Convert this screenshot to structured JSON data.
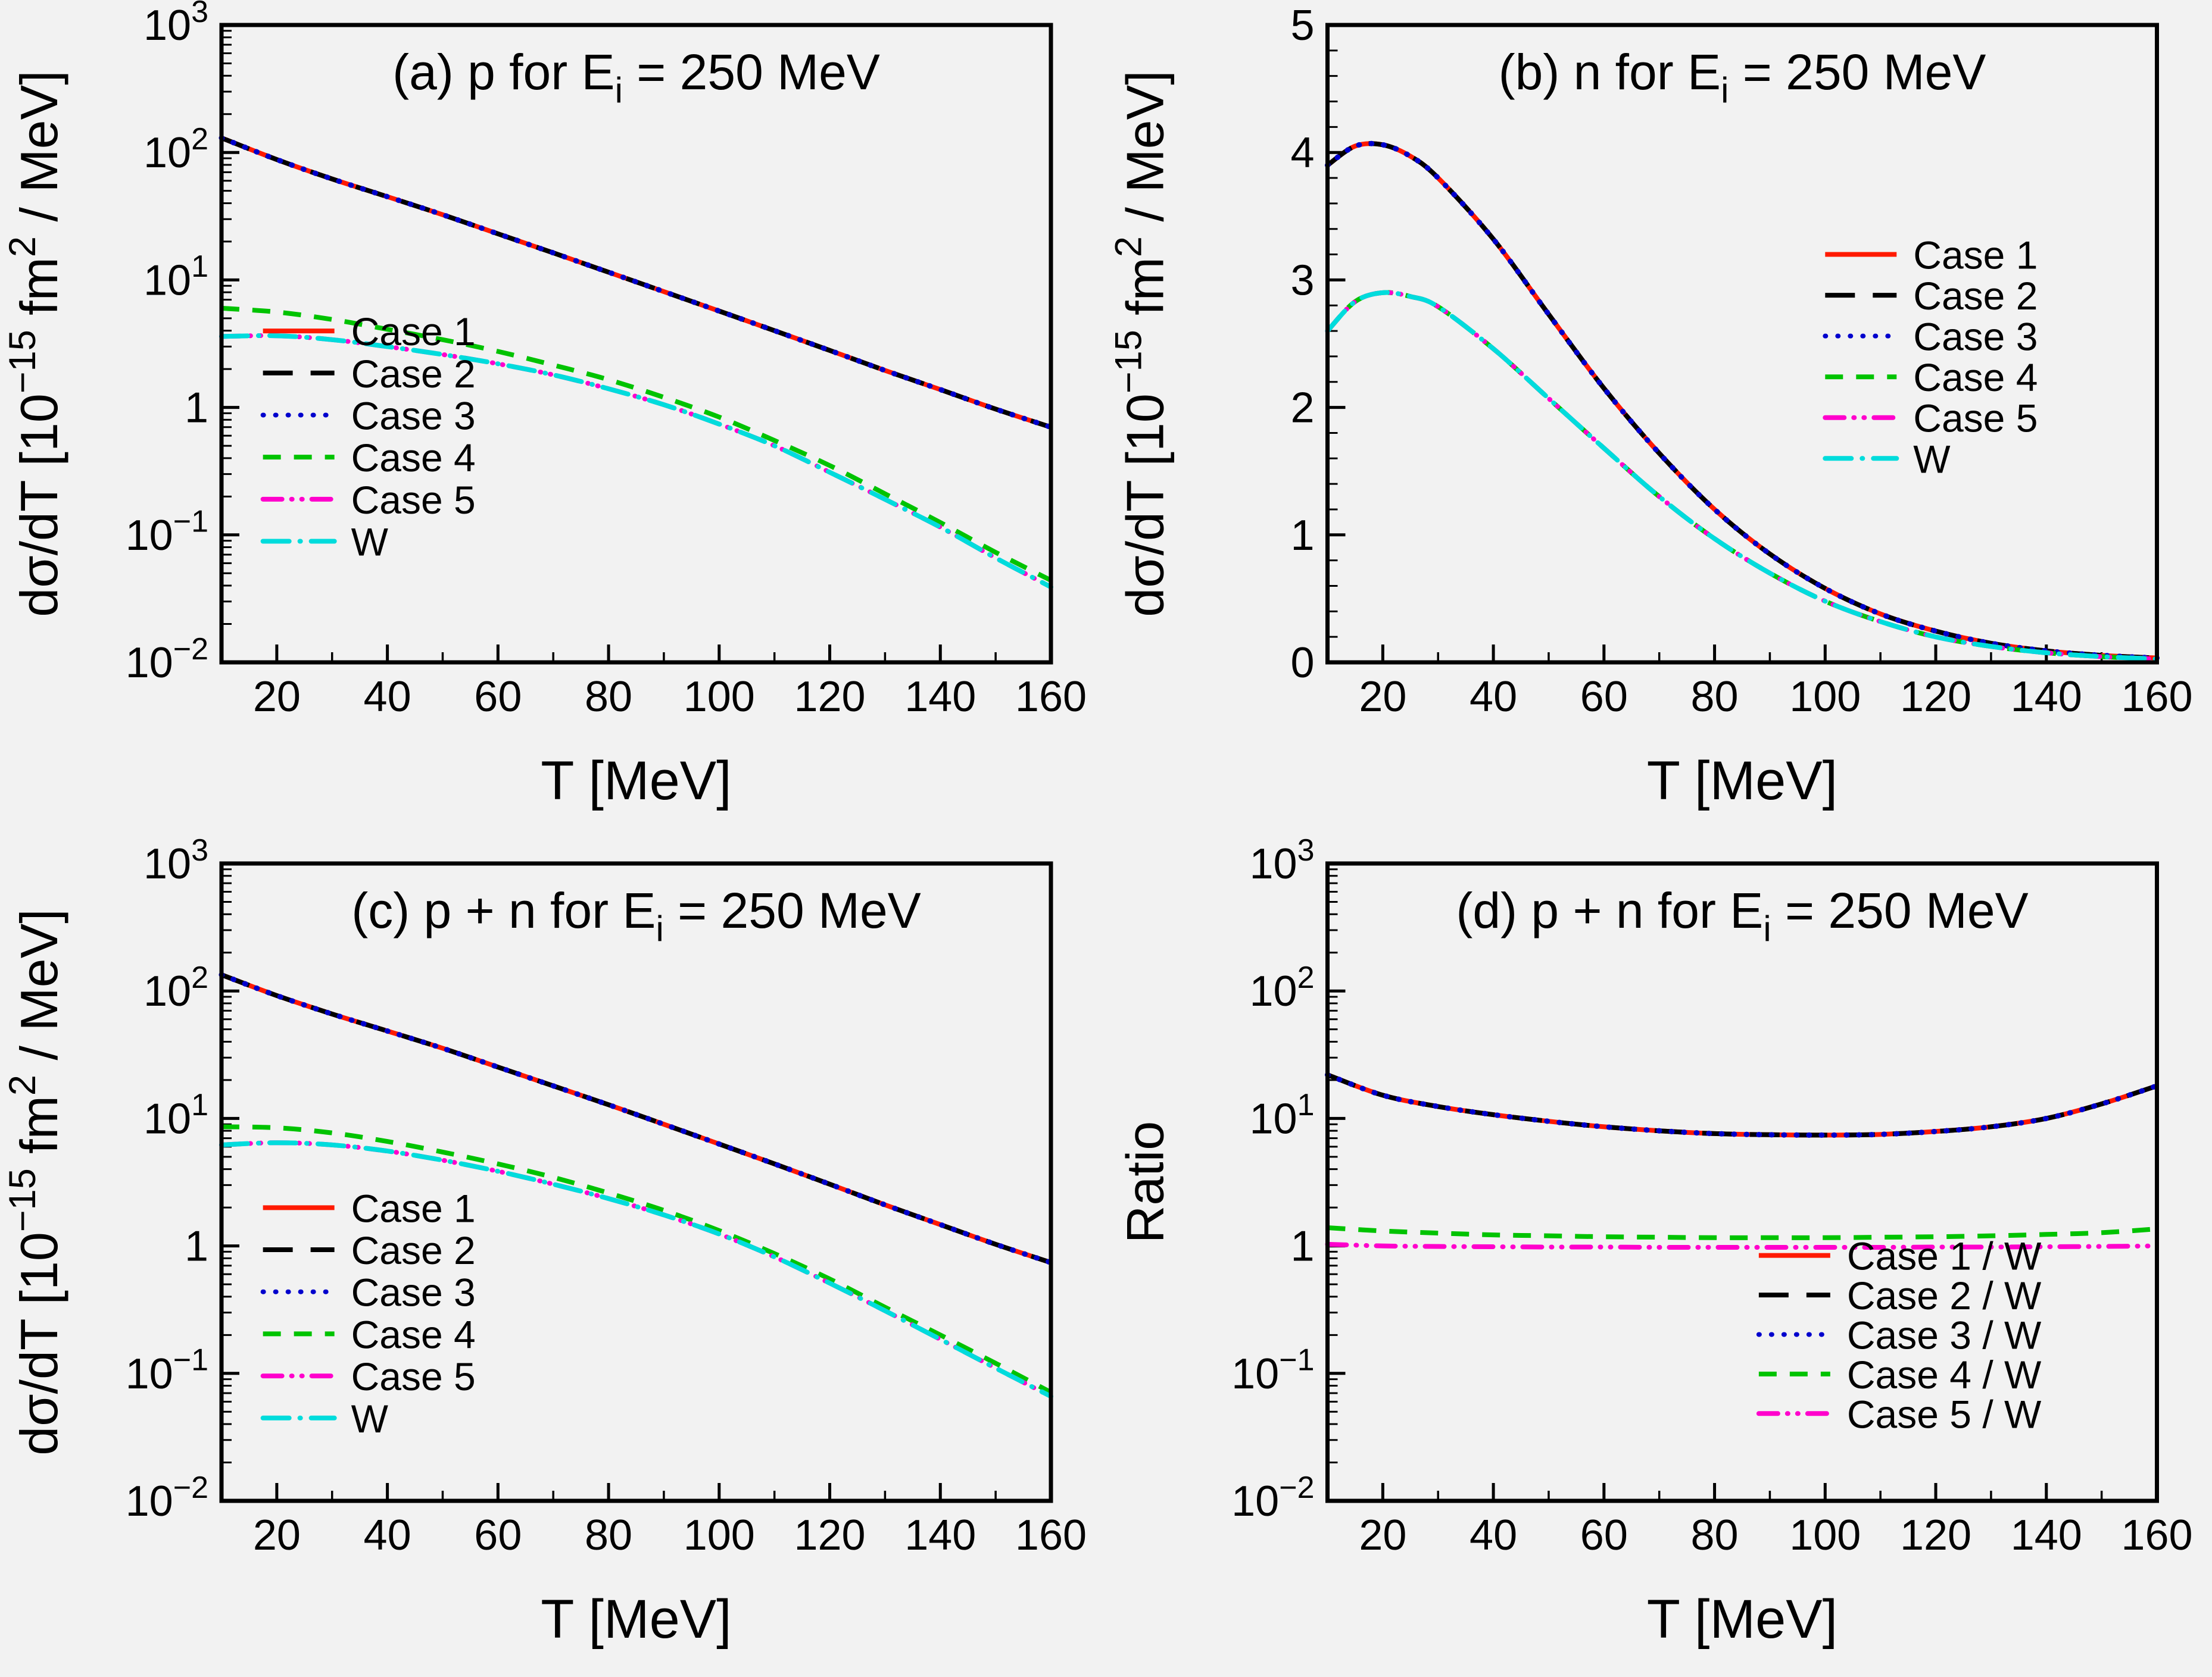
{
  "figure": {
    "background": "#f2f2f2",
    "frame_color": "#000000",
    "text_color": "#000000"
  },
  "chart_data": [
    {
      "id": "a",
      "type": "line",
      "title_text": "(a) p for Ei = 250 MeV",
      "title_parts": [
        {
          "t": "(a) p for E"
        },
        {
          "t": "i",
          "sub": true
        },
        {
          "t": " = 250 MeV"
        }
      ],
      "xlabel": "T [MeV]",
      "ylabel_text": "dσ/dT [10−15 fm2 / MeV]",
      "ylabel_parts": [
        {
          "t": "dσ/dT [10"
        },
        {
          "t": "−15",
          "sup": true
        },
        {
          "t": " fm"
        },
        {
          "t": "2",
          "sup": true
        },
        {
          "t": " / MeV]"
        }
      ],
      "xscale": "linear",
      "yscale": "log",
      "xlim": [
        10,
        160
      ],
      "ylim": [
        0.01,
        1000
      ],
      "xticks": [
        20,
        40,
        60,
        80,
        100,
        120,
        140,
        160
      ],
      "yticks": [
        {
          "v": 0.01,
          "parts": [
            {
              "t": "10"
            },
            {
              "t": "−2",
              "sup": true
            }
          ]
        },
        {
          "v": 0.1,
          "parts": [
            {
              "t": "10"
            },
            {
              "t": "−1",
              "sup": true
            }
          ]
        },
        {
          "v": 1,
          "parts": [
            {
              "t": "1"
            }
          ]
        },
        {
          "v": 10,
          "parts": [
            {
              "t": "10"
            },
            {
              "t": "1",
              "sup": true
            }
          ]
        },
        {
          "v": 100,
          "parts": [
            {
              "t": "10"
            },
            {
              "t": "2",
              "sup": true
            }
          ]
        },
        {
          "v": 1000,
          "parts": [
            {
              "t": "10"
            },
            {
              "t": "3",
              "sup": true
            }
          ]
        }
      ],
      "x": [
        10,
        20,
        30,
        40,
        50,
        60,
        70,
        80,
        90,
        100,
        110,
        120,
        130,
        140,
        150,
        160
      ],
      "series": [
        {
          "name": "Case 1",
          "color": "#ff1a00",
          "dash": "solid",
          "width": 8,
          "values": [
            130,
            88,
            62,
            45,
            32.5,
            23,
            16.3,
            11.5,
            8.1,
            5.7,
            4.0,
            2.8,
            1.95,
            1.38,
            0.97,
            0.7
          ]
        },
        {
          "name": "Case 2",
          "color": "#000000",
          "dash": "longdash",
          "width": 8,
          "values": [
            130,
            88,
            62,
            45,
            32.5,
            23,
            16.3,
            11.5,
            8.1,
            5.7,
            4.0,
            2.8,
            1.95,
            1.38,
            0.97,
            0.7
          ]
        },
        {
          "name": "Case 3",
          "color": "#0000cd",
          "dash": "dot",
          "width": 9,
          "values": [
            130,
            88,
            62,
            45,
            32.5,
            23,
            16.3,
            11.5,
            8.1,
            5.7,
            4.0,
            2.8,
            1.95,
            1.38,
            0.97,
            0.7
          ]
        },
        {
          "name": "Case 4",
          "color": "#00c300",
          "dash": "dash",
          "width": 8,
          "values": [
            6.0,
            5.6,
            4.9,
            4.1,
            3.4,
            2.75,
            2.15,
            1.65,
            1.2,
            0.84,
            0.55,
            0.35,
            0.21,
            0.125,
            0.073,
            0.044
          ]
        },
        {
          "name": "Case 5",
          "color": "#ff00cc",
          "dash": "dashdotdot",
          "width": 8,
          "values": [
            3.6,
            3.65,
            3.4,
            3.0,
            2.6,
            2.2,
            1.8,
            1.4,
            1.05,
            0.74,
            0.5,
            0.31,
            0.19,
            0.115,
            0.066,
            0.039
          ]
        },
        {
          "name": "W",
          "color": "#00dcdc",
          "dash": "dashdot",
          "width": 8,
          "values": [
            3.6,
            3.65,
            3.4,
            3.0,
            2.6,
            2.2,
            1.8,
            1.4,
            1.05,
            0.74,
            0.5,
            0.31,
            0.19,
            0.115,
            0.066,
            0.039
          ]
        }
      ],
      "legend": {
        "x": 0.05,
        "y": 0.48,
        "dy": 0.066
      }
    },
    {
      "id": "b",
      "type": "line",
      "title_text": "(b) n for Ei = 250 MeV",
      "title_parts": [
        {
          "t": "(b) n for E"
        },
        {
          "t": "i",
          "sub": true
        },
        {
          "t": " = 250 MeV"
        }
      ],
      "xlabel": "T [MeV]",
      "ylabel_text": "dσ/dT [10−15 fm2 / MeV]",
      "ylabel_parts": [
        {
          "t": "dσ/dT [10"
        },
        {
          "t": "−15",
          "sup": true
        },
        {
          "t": " fm"
        },
        {
          "t": "2",
          "sup": true
        },
        {
          "t": " / MeV]"
        }
      ],
      "xscale": "linear",
      "yscale": "linear",
      "xlim": [
        10,
        160
      ],
      "ylim": [
        0,
        5
      ],
      "xticks": [
        20,
        40,
        60,
        80,
        100,
        120,
        140,
        160
      ],
      "yticks": [
        {
          "v": 0,
          "parts": [
            {
              "t": "0"
            }
          ]
        },
        {
          "v": 1,
          "parts": [
            {
              "t": "1"
            }
          ]
        },
        {
          "v": 2,
          "parts": [
            {
              "t": "2"
            }
          ]
        },
        {
          "v": 3,
          "parts": [
            {
              "t": "3"
            }
          ]
        },
        {
          "v": 4,
          "parts": [
            {
              "t": "4"
            }
          ]
        },
        {
          "v": 5,
          "parts": [
            {
              "t": "5"
            }
          ]
        }
      ],
      "x": [
        10,
        15,
        20,
        25,
        30,
        40,
        50,
        60,
        70,
        80,
        90,
        100,
        110,
        120,
        130,
        140,
        150,
        160
      ],
      "series": [
        {
          "name": "Case 1",
          "color": "#ff1a00",
          "dash": "solid",
          "width": 8,
          "values": [
            3.9,
            4.05,
            4.06,
            3.97,
            3.8,
            3.32,
            2.73,
            2.15,
            1.64,
            1.2,
            0.85,
            0.58,
            0.38,
            0.245,
            0.15,
            0.09,
            0.055,
            0.034
          ]
        },
        {
          "name": "Case 2",
          "color": "#000000",
          "dash": "longdash",
          "width": 8,
          "values": [
            3.9,
            4.05,
            4.06,
            3.97,
            3.8,
            3.32,
            2.73,
            2.15,
            1.64,
            1.2,
            0.85,
            0.58,
            0.38,
            0.245,
            0.15,
            0.09,
            0.055,
            0.034
          ]
        },
        {
          "name": "Case 3",
          "color": "#0000cd",
          "dash": "dot",
          "width": 9,
          "values": [
            3.9,
            4.05,
            4.06,
            3.97,
            3.8,
            3.32,
            2.73,
            2.15,
            1.64,
            1.2,
            0.85,
            0.58,
            0.38,
            0.245,
            0.15,
            0.09,
            0.055,
            0.034
          ]
        },
        {
          "name": "Case 4",
          "color": "#00c300",
          "dash": "dash",
          "width": 8,
          "values": [
            2.6,
            2.83,
            2.9,
            2.87,
            2.79,
            2.46,
            2.07,
            1.68,
            1.3,
            0.97,
            0.7,
            0.48,
            0.32,
            0.2,
            0.125,
            0.075,
            0.045,
            0.027
          ]
        },
        {
          "name": "Case 5",
          "color": "#ff00cc",
          "dash": "dashdotdot",
          "width": 8,
          "values": [
            2.6,
            2.83,
            2.9,
            2.87,
            2.79,
            2.46,
            2.07,
            1.68,
            1.3,
            0.97,
            0.7,
            0.48,
            0.32,
            0.2,
            0.125,
            0.075,
            0.045,
            0.027
          ]
        },
        {
          "name": "W",
          "color": "#00dcdc",
          "dash": "dashdot",
          "width": 8,
          "values": [
            2.6,
            2.83,
            2.9,
            2.87,
            2.79,
            2.46,
            2.07,
            1.68,
            1.3,
            0.97,
            0.7,
            0.48,
            0.32,
            0.2,
            0.125,
            0.075,
            0.045,
            0.027
          ]
        }
      ],
      "legend": {
        "x": 0.6,
        "y": 0.36,
        "dy": 0.064
      }
    },
    {
      "id": "c",
      "type": "line",
      "title_text": "(c) p + n for Ei = 250 MeV",
      "title_parts": [
        {
          "t": "(c) p + n for E"
        },
        {
          "t": "i",
          "sub": true
        },
        {
          "t": " = 250 MeV"
        }
      ],
      "xlabel": "T [MeV]",
      "ylabel_text": "dσ/dT [10−15 fm2 / MeV]",
      "ylabel_parts": [
        {
          "t": "dσ/dT [10"
        },
        {
          "t": "−15",
          "sup": true
        },
        {
          "t": " fm"
        },
        {
          "t": "2",
          "sup": true
        },
        {
          "t": " / MeV]"
        }
      ],
      "xscale": "linear",
      "yscale": "log",
      "xlim": [
        10,
        160
      ],
      "ylim": [
        0.01,
        1000
      ],
      "xticks": [
        20,
        40,
        60,
        80,
        100,
        120,
        140,
        160
      ],
      "yticks": [
        {
          "v": 0.01,
          "parts": [
            {
              "t": "10"
            },
            {
              "t": "−2",
              "sup": true
            }
          ]
        },
        {
          "v": 0.1,
          "parts": [
            {
              "t": "10"
            },
            {
              "t": "−1",
              "sup": true
            }
          ]
        },
        {
          "v": 1,
          "parts": [
            {
              "t": "1"
            }
          ]
        },
        {
          "v": 10,
          "parts": [
            {
              "t": "10"
            },
            {
              "t": "1",
              "sup": true
            }
          ]
        },
        {
          "v": 100,
          "parts": [
            {
              "t": "10"
            },
            {
              "t": "2",
              "sup": true
            }
          ]
        },
        {
          "v": 1000,
          "parts": [
            {
              "t": "10"
            },
            {
              "t": "3",
              "sup": true
            }
          ]
        }
      ],
      "x": [
        10,
        20,
        30,
        40,
        50,
        60,
        70,
        80,
        90,
        100,
        110,
        120,
        130,
        140,
        150,
        160
      ],
      "series": [
        {
          "name": "Case 1",
          "color": "#ff1a00",
          "dash": "solid",
          "width": 8,
          "values": [
            134,
            92,
            66,
            48.5,
            35.5,
            25.3,
            18.0,
            12.8,
            9.0,
            6.3,
            4.4,
            3.05,
            2.1,
            1.47,
            1.03,
            0.74
          ]
        },
        {
          "name": "Case 2",
          "color": "#000000",
          "dash": "longdash",
          "width": 8,
          "values": [
            134,
            92,
            66,
            48.5,
            35.5,
            25.3,
            18.0,
            12.8,
            9.0,
            6.3,
            4.4,
            3.05,
            2.1,
            1.47,
            1.03,
            0.74
          ]
        },
        {
          "name": "Case 3",
          "color": "#0000cd",
          "dash": "dot",
          "width": 9,
          "values": [
            134,
            92,
            66,
            48.5,
            35.5,
            25.3,
            18.0,
            12.8,
            9.0,
            6.3,
            4.4,
            3.05,
            2.1,
            1.47,
            1.03,
            0.74
          ]
        },
        {
          "name": "Case 4",
          "color": "#00c300",
          "dash": "dash",
          "width": 8,
          "values": [
            8.6,
            8.45,
            7.7,
            6.6,
            5.45,
            4.4,
            3.45,
            2.6,
            1.9,
            1.32,
            0.87,
            0.55,
            0.33,
            0.2,
            0.12,
            0.071
          ]
        },
        {
          "name": "Case 5",
          "color": "#ff00cc",
          "dash": "dashdotdot",
          "width": 8,
          "values": [
            6.2,
            6.45,
            6.2,
            5.55,
            4.7,
            3.85,
            3.05,
            2.35,
            1.75,
            1.24,
            0.82,
            0.51,
            0.31,
            0.185,
            0.11,
            0.066
          ]
        },
        {
          "name": "W",
          "color": "#00dcdc",
          "dash": "dashdot",
          "width": 8,
          "values": [
            6.2,
            6.45,
            6.2,
            5.55,
            4.7,
            3.85,
            3.05,
            2.35,
            1.75,
            1.24,
            0.82,
            0.51,
            0.31,
            0.185,
            0.11,
            0.066
          ]
        }
      ],
      "legend": {
        "x": 0.05,
        "y": 0.54,
        "dy": 0.066
      }
    },
    {
      "id": "d",
      "type": "line",
      "title_text": "(d) p + n for Ei = 250 MeV",
      "title_parts": [
        {
          "t": "(d) p + n for E"
        },
        {
          "t": "i",
          "sub": true
        },
        {
          "t": " = 250 MeV"
        }
      ],
      "xlabel": "T [MeV]",
      "ylabel_text": "Ratio",
      "ylabel_parts": [
        {
          "t": "Ratio"
        }
      ],
      "xscale": "linear",
      "yscale": "log",
      "xlim": [
        10,
        160
      ],
      "ylim": [
        0.01,
        1000
      ],
      "xticks": [
        20,
        40,
        60,
        80,
        100,
        120,
        140,
        160
      ],
      "yticks": [
        {
          "v": 0.01,
          "parts": [
            {
              "t": "10"
            },
            {
              "t": "−2",
              "sup": true
            }
          ]
        },
        {
          "v": 0.1,
          "parts": [
            {
              "t": "10"
            },
            {
              "t": "−1",
              "sup": true
            }
          ]
        },
        {
          "v": 1,
          "parts": [
            {
              "t": "1"
            }
          ]
        },
        {
          "v": 10,
          "parts": [
            {
              "t": "10"
            },
            {
              "t": "1",
              "sup": true
            }
          ]
        },
        {
          "v": 100,
          "parts": [
            {
              "t": "10"
            },
            {
              "t": "2",
              "sup": true
            }
          ]
        },
        {
          "v": 1000,
          "parts": [
            {
              "t": "10"
            },
            {
              "t": "3",
              "sup": true
            }
          ]
        }
      ],
      "x": [
        10,
        20,
        30,
        40,
        50,
        60,
        70,
        80,
        90,
        100,
        110,
        120,
        130,
        140,
        150,
        160
      ],
      "series": [
        {
          "name": "Case 1 / W",
          "color": "#ff1a00",
          "dash": "solid",
          "width": 8,
          "values": [
            22,
            15.2,
            12.4,
            10.7,
            9.5,
            8.6,
            8.0,
            7.6,
            7.45,
            7.4,
            7.5,
            7.9,
            8.6,
            10.0,
            13.0,
            18.0
          ]
        },
        {
          "name": "Case 2 / W",
          "color": "#000000",
          "dash": "longdash",
          "width": 8,
          "values": [
            22,
            15.2,
            12.4,
            10.7,
            9.5,
            8.6,
            8.0,
            7.6,
            7.45,
            7.4,
            7.5,
            7.9,
            8.6,
            10.0,
            13.0,
            18.0
          ]
        },
        {
          "name": "Case 3 / W",
          "color": "#0000cd",
          "dash": "dot",
          "width": 9,
          "values": [
            22,
            15.2,
            12.4,
            10.7,
            9.5,
            8.6,
            8.0,
            7.6,
            7.45,
            7.4,
            7.5,
            7.9,
            8.6,
            10.0,
            13.0,
            18.0
          ]
        },
        {
          "name": "Case 4 / W",
          "color": "#00c300",
          "dash": "dash",
          "width": 8,
          "values": [
            1.39,
            1.31,
            1.26,
            1.22,
            1.2,
            1.18,
            1.17,
            1.16,
            1.16,
            1.16,
            1.17,
            1.18,
            1.2,
            1.23,
            1.27,
            1.36
          ]
        },
        {
          "name": "Case 5 / W",
          "color": "#ff00cc",
          "dash": "dashdotdot",
          "width": 8,
          "values": [
            1.03,
            1.0,
            0.99,
            0.985,
            0.98,
            0.98,
            0.975,
            0.975,
            0.975,
            0.975,
            0.975,
            0.98,
            0.98,
            0.985,
            0.99,
            1.0
          ]
        }
      ],
      "legend": {
        "x": 0.52,
        "y": 0.615,
        "dy": 0.062
      }
    }
  ]
}
